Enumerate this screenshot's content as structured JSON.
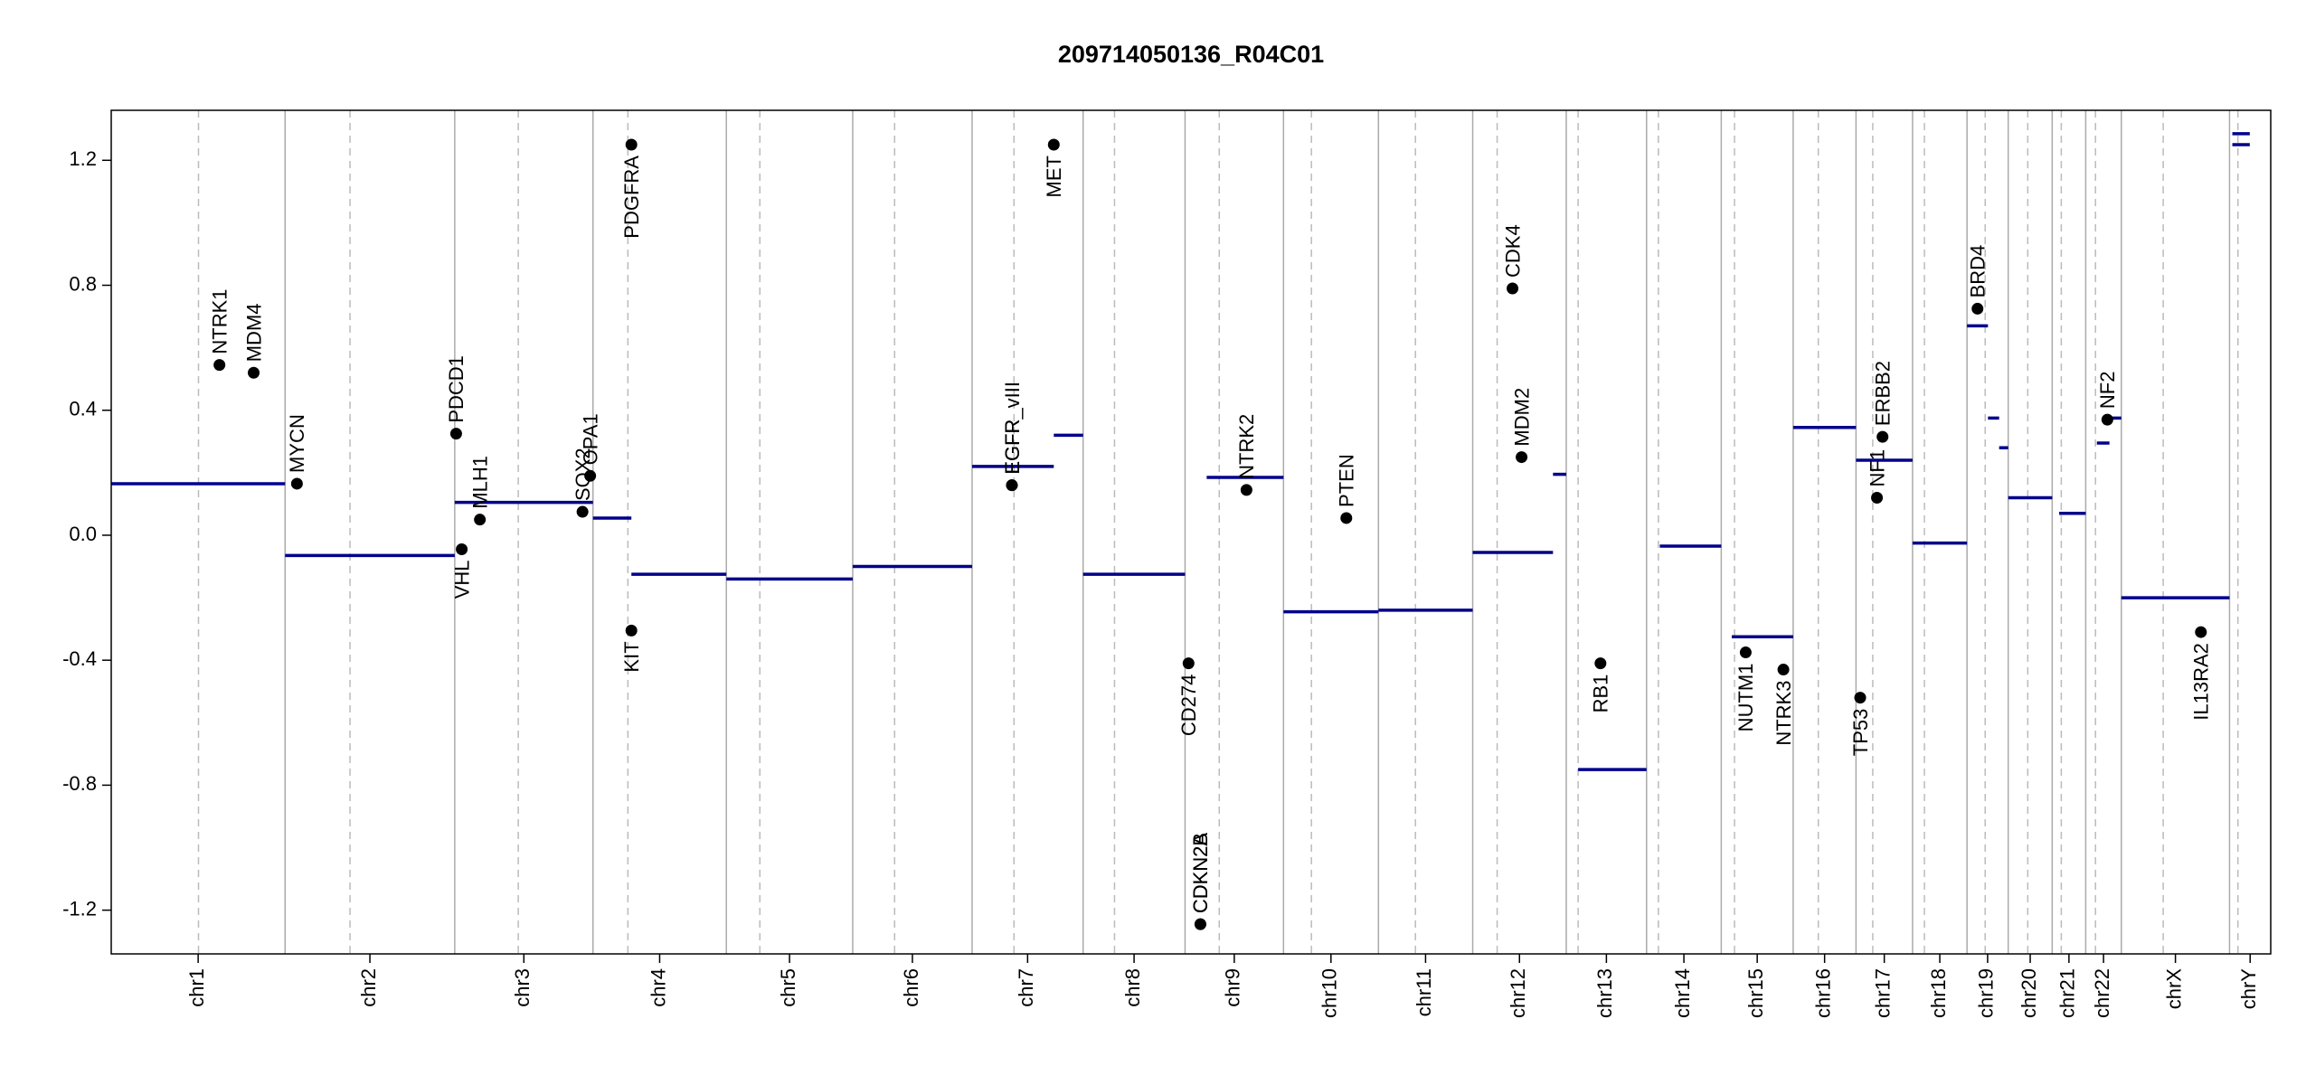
{
  "chart_data": {
    "type": "copy-number",
    "title": "209714050136_R04C01",
    "xlim": [
      0,
      3093
    ],
    "ylim": [
      -1.34,
      1.36
    ],
    "yticks": [
      -1.2,
      -0.8,
      -0.4,
      {
        "value": 0,
        "label": "0.0"
      },
      0.4,
      0.8,
      1.2
    ],
    "chromosomes": [
      {
        "name": "chr1",
        "start": 0,
        "end": 249,
        "centromere": 125
      },
      {
        "name": "chr2",
        "start": 249,
        "end": 492,
        "centromere": 342
      },
      {
        "name": "chr3",
        "start": 492,
        "end": 690,
        "centromere": 583
      },
      {
        "name": "chr4",
        "start": 690,
        "end": 881,
        "centromere": 740
      },
      {
        "name": "chr5",
        "start": 881,
        "end": 1062,
        "centromere": 929
      },
      {
        "name": "chr6",
        "start": 1062,
        "end": 1233,
        "centromere": 1122
      },
      {
        "name": "chr7",
        "start": 1233,
        "end": 1392,
        "centromere": 1293
      },
      {
        "name": "chr8",
        "start": 1392,
        "end": 1538,
        "centromere": 1437
      },
      {
        "name": "chr9",
        "start": 1538,
        "end": 1679,
        "centromere": 1587
      },
      {
        "name": "chr10",
        "start": 1679,
        "end": 1815,
        "centromere": 1719
      },
      {
        "name": "chr11",
        "start": 1815,
        "end": 1950,
        "centromere": 1868
      },
      {
        "name": "chr12",
        "start": 1950,
        "end": 2084,
        "centromere": 1985
      },
      {
        "name": "chr13",
        "start": 2084,
        "end": 2199,
        "centromere": 2101
      },
      {
        "name": "chr14",
        "start": 2199,
        "end": 2306,
        "centromere": 2216
      },
      {
        "name": "chr15",
        "start": 2306,
        "end": 2409,
        "centromere": 2325
      },
      {
        "name": "chr16",
        "start": 2409,
        "end": 2499,
        "centromere": 2445
      },
      {
        "name": "chr17",
        "start": 2499,
        "end": 2580,
        "centromere": 2523
      },
      {
        "name": "chr18",
        "start": 2580,
        "end": 2658,
        "centromere": 2597
      },
      {
        "name": "chr19",
        "start": 2658,
        "end": 2717,
        "centromere": 2684
      },
      {
        "name": "chr20",
        "start": 2717,
        "end": 2780,
        "centromere": 2745
      },
      {
        "name": "chr21",
        "start": 2780,
        "end": 2828,
        "centromere": 2793
      },
      {
        "name": "chr22",
        "start": 2828,
        "end": 2879,
        "centromere": 2842
      },
      {
        "name": "chrX",
        "start": 2879,
        "end": 3034,
        "centromere": 2939
      },
      {
        "name": "chrY",
        "start": 3034,
        "end": 3093,
        "centromere": 3046
      }
    ],
    "segment_color": "#00008b",
    "segments": [
      {
        "start": 0,
        "end": 249,
        "value": 0.165
      },
      {
        "start": 249,
        "end": 492,
        "value": -0.065
      },
      {
        "start": 492,
        "end": 690,
        "value": 0.105
      },
      {
        "start": 690,
        "end": 745,
        "value": 0.055
      },
      {
        "start": 745,
        "end": 881,
        "value": -0.125
      },
      {
        "start": 881,
        "end": 1062,
        "value": -0.14
      },
      {
        "start": 1062,
        "end": 1233,
        "value": -0.1
      },
      {
        "start": 1233,
        "end": 1350,
        "value": 0.22
      },
      {
        "start": 1350,
        "end": 1392,
        "value": 0.32
      },
      {
        "start": 1392,
        "end": 1538,
        "value": -0.125
      },
      {
        "start": 1569,
        "end": 1679,
        "value": 0.185
      },
      {
        "start": 1679,
        "end": 1815,
        "value": -0.245
      },
      {
        "start": 1815,
        "end": 1950,
        "value": -0.24
      },
      {
        "start": 1950,
        "end": 2065,
        "value": -0.055
      },
      {
        "start": 2065,
        "end": 2084,
        "value": 0.195
      },
      {
        "start": 2101,
        "end": 2199,
        "value": -0.75
      },
      {
        "start": 2218,
        "end": 2306,
        "value": -0.035
      },
      {
        "start": 2321,
        "end": 2409,
        "value": -0.325
      },
      {
        "start": 2409,
        "end": 2499,
        "value": 0.345
      },
      {
        "start": 2499,
        "end": 2580,
        "value": 0.24
      },
      {
        "start": 2580,
        "end": 2658,
        "value": -0.025
      },
      {
        "start": 2658,
        "end": 2688,
        "value": 0.67
      },
      {
        "start": 2688,
        "end": 2704,
        "value": 0.375
      },
      {
        "start": 2704,
        "end": 2717,
        "value": 0.28
      },
      {
        "start": 2717,
        "end": 2780,
        "value": 0.12
      },
      {
        "start": 2790,
        "end": 2828,
        "value": 0.07
      },
      {
        "start": 2844,
        "end": 2862,
        "value": 0.295
      },
      {
        "start": 2862,
        "end": 2879,
        "value": 0.375
      },
      {
        "start": 2879,
        "end": 3034,
        "value": -0.2
      },
      {
        "start": 3038,
        "end": 3063,
        "value": 1.285
      },
      {
        "start": 3038,
        "end": 3063,
        "value": 1.25
      }
    ],
    "gene_color": "#000000",
    "genes": [
      {
        "name": "NTRK1",
        "x": 155,
        "value": 0.545
      },
      {
        "name": "MDM4",
        "x": 204,
        "value": 0.52
      },
      {
        "name": "MYCN",
        "x": 266,
        "value": 0.165
      },
      {
        "name": "PDCD1",
        "x": 494,
        "value": 0.325
      },
      {
        "name": "VHL",
        "x": 502,
        "value": -0.045
      },
      {
        "name": "MLH1",
        "x": 528,
        "value": 0.05
      },
      {
        "name": "SOX2",
        "x": 675,
        "value": 0.075
      },
      {
        "name": "OPA1",
        "x": 686,
        "value": 0.19
      },
      {
        "name": "PDGFRA",
        "x": 745,
        "value": 1.25
      },
      {
        "name": "KIT",
        "x": 745,
        "value": -0.305
      },
      {
        "name": "EGFR",
        "x": 1290,
        "value": 0.16
      },
      {
        "name": "EGFR_vIII",
        "x": 1290,
        "value": 0.16
      },
      {
        "name": "MET",
        "x": 1350,
        "value": 1.25
      },
      {
        "name": "CD274",
        "x": 1543,
        "value": -0.41
      },
      {
        "name": "CDKN2A",
        "x": 1560,
        "value": -1.245
      },
      {
        "name": "CDKN2B",
        "x": 1560,
        "value": -1.245
      },
      {
        "name": "NTRK2",
        "x": 1626,
        "value": 0.145
      },
      {
        "name": "PTEN",
        "x": 1769,
        "value": 0.055
      },
      {
        "name": "CDK4",
        "x": 2007,
        "value": 0.79
      },
      {
        "name": "MDM2",
        "x": 2020,
        "value": 0.25
      },
      {
        "name": "RB1",
        "x": 2133,
        "value": -0.41
      },
      {
        "name": "NUTM1",
        "x": 2341,
        "value": -0.375
      },
      {
        "name": "NTRK3",
        "x": 2395,
        "value": -0.43
      },
      {
        "name": "TP53",
        "x": 2505,
        "value": -0.52
      },
      {
        "name": "NF1",
        "x": 2529,
        "value": 0.12
      },
      {
        "name": "ERBB2",
        "x": 2537,
        "value": 0.315
      },
      {
        "name": "BRD4",
        "x": 2673,
        "value": 0.725
      },
      {
        "name": "NF2",
        "x": 2859,
        "value": 0.37
      },
      {
        "name": "IL13RA2",
        "x": 2993,
        "value": -0.31
      }
    ]
  }
}
